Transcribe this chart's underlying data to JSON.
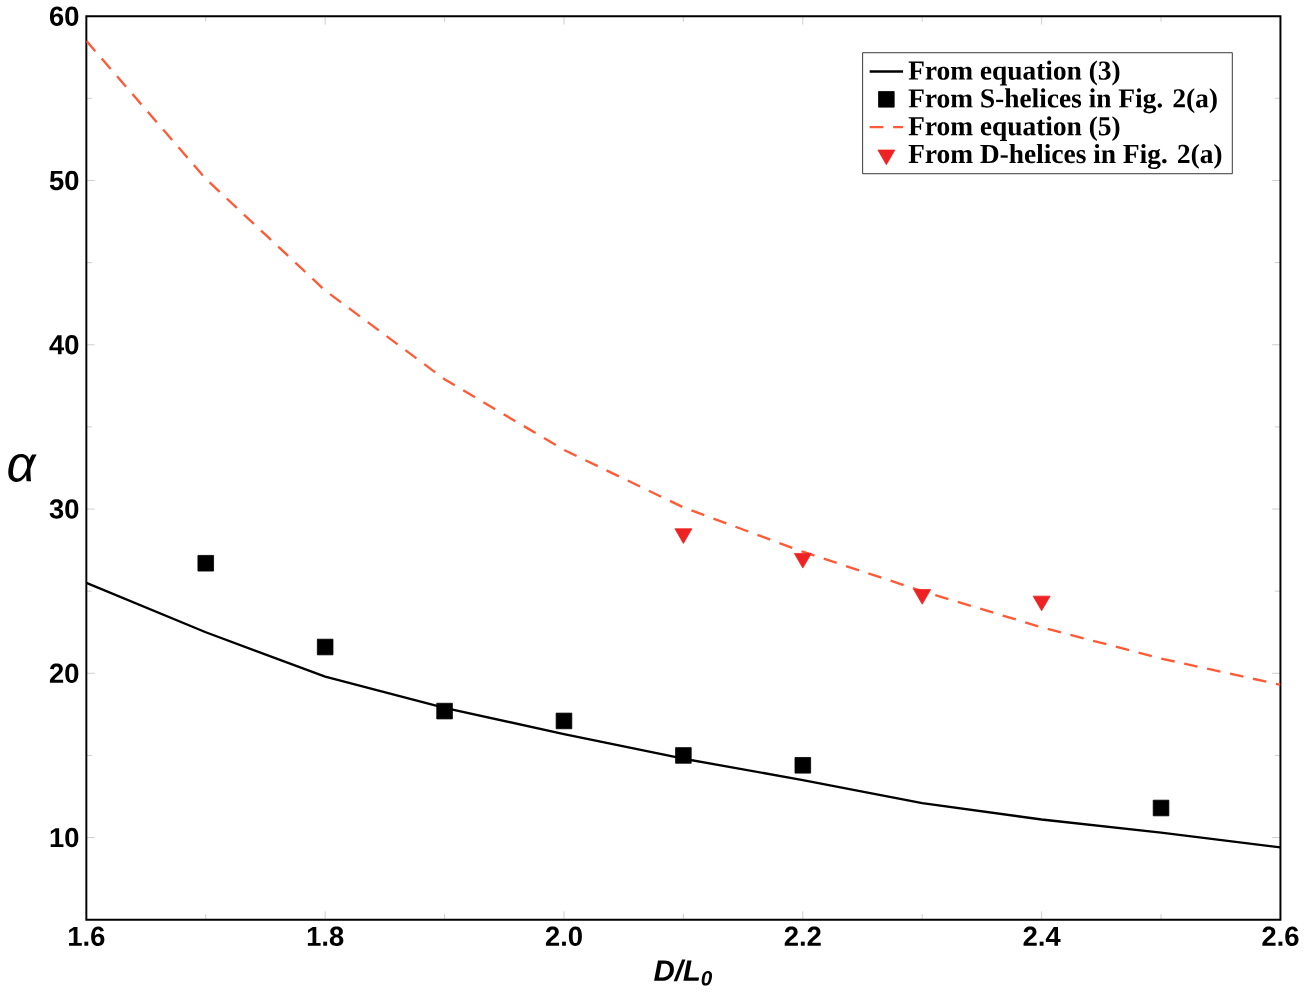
{
  "chart_data": {
    "type": "line",
    "xlabel": "D/L$_{0}$",
    "ylabel": "α",
    "xlim": [
      1.6,
      2.6
    ],
    "ylim": [
      5,
      60
    ],
    "xticks": [
      1.6,
      1.8,
      {
        "value": 2,
        "label": "2.0"
      },
      2.2,
      2.4,
      2.6
    ],
    "yticks": [
      10,
      20,
      30,
      40,
      50,
      60
    ],
    "legend": "top right",
    "grid": false,
    "series": [
      {
        "name": "From equation (3)",
        "color": "#000000",
        "line_style": "solid",
        "marker": "none",
        "x": [
          1.6,
          1.7,
          1.8,
          1.9,
          2.0,
          2.1,
          2.2,
          2.3,
          2.4,
          2.5,
          2.6
        ],
        "values": [
          25.5,
          22.5,
          19.8,
          17.9,
          16.3,
          14.8,
          13.5,
          12.1,
          11.1,
          10.3,
          9.4
        ]
      },
      {
        "name": "From S-helices in Fig. 2(a)",
        "type": "scatter",
        "color": "#000000",
        "marker": "square",
        "x": [
          1.7,
          1.8,
          1.9,
          2.0,
          2.1,
          2.2,
          2.5
        ],
        "values": [
          26.7,
          21.6,
          17.7,
          17.1,
          15.0,
          14.4,
          11.8
        ]
      },
      {
        "name": "From equation (5)",
        "color": "#ff5a36",
        "line_style": "dashed",
        "marker": "none",
        "x": [
          1.6,
          1.7,
          1.8,
          1.9,
          2.0,
          2.1,
          2.2,
          2.3,
          2.4,
          2.5,
          2.6
        ],
        "values": [
          58.5,
          50.1,
          43.3,
          37.9,
          33.6,
          30.1,
          27.4,
          25.0,
          22.8,
          20.9,
          19.3
        ]
      },
      {
        "name": "From D-helices in Fig. 2(a)",
        "type": "scatter",
        "color": "#ee2222",
        "marker": "triangle",
        "x": [
          2.1,
          2.2,
          2.3,
          2.4
        ],
        "values": [
          28.5,
          27.0,
          24.8,
          24.4
        ]
      }
    ]
  }
}
